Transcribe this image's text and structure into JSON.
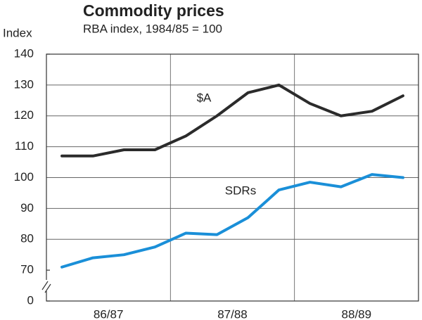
{
  "chart_data": {
    "type": "line",
    "title": "Commodity prices",
    "subtitle": "RBA index, 1984/85 = 100",
    "y_label": "Index",
    "period_labels": [
      "86/87",
      "87/88",
      "88/89"
    ],
    "categories": [
      null,
      null,
      null,
      null,
      null,
      null,
      null,
      null,
      null,
      null,
      null,
      null
    ],
    "series": [
      {
        "name": "$A",
        "color": "#2b2b2b",
        "values": [
          107,
          107,
          109,
          109,
          113.5,
          120,
          127.5,
          130,
          124,
          120,
          121.5,
          126.5
        ]
      },
      {
        "name": "SDRs",
        "color": "#1a8fd8",
        "values": [
          71,
          74,
          75,
          77.5,
          82,
          81.5,
          87,
          96,
          98.5,
          97,
          101,
          100
        ]
      }
    ],
    "ylim": [
      0,
      140
    ],
    "yticks": [
      0,
      70,
      80,
      90,
      100,
      110,
      120,
      130,
      140
    ],
    "axis_break": [
      0,
      70
    ],
    "grid": true
  }
}
